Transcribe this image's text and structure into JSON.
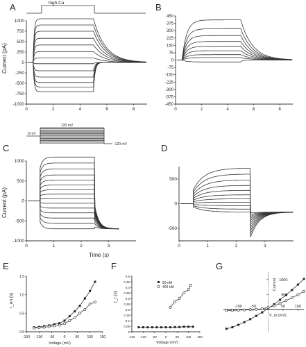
{
  "panel_labels": {
    "A": "A",
    "B": "B",
    "C": "C",
    "D": "D",
    "E": "E",
    "F": "F",
    "G": "G"
  },
  "protocol_A": {
    "label": "high Ca"
  },
  "protocol_C": {
    "top": "120 mV",
    "left": "0 mV",
    "bottom": "-120 mV"
  },
  "top_row": {
    "ylabel": "Current (pA)",
    "A": {
      "yticks": [
        "1000",
        "750",
        "500",
        "250",
        "0",
        "-250",
        "-500",
        "-750",
        "-1000"
      ],
      "xticks": [
        "0",
        "2",
        "4",
        "6",
        "8"
      ]
    },
    "B": {
      "yticks": [
        "450",
        "375",
        "300",
        "225",
        "150",
        "75",
        "0",
        "-75",
        "-150",
        "-225",
        "-300",
        "-375",
        "-450"
      ],
      "xticks": [
        "0",
        "2",
        "4",
        "6",
        "8"
      ]
    }
  },
  "mid_row": {
    "ylabel": "Current (pA)",
    "xlabel": "Time (s)",
    "C": {
      "yticks": [
        "1000",
        "500",
        "0",
        "-500",
        "-1000"
      ],
      "xticks": [
        "0",
        "1",
        "2",
        "3"
      ]
    },
    "D": {
      "yticks": [
        "500",
        "0",
        "-500"
      ],
      "xticks": [
        "0",
        "1",
        "2",
        "3"
      ]
    }
  },
  "E": {
    "ylabel": "τ_on (s)",
    "xlabel": "Voltage (mV)",
    "yticks": [
      "1.5",
      "1.0",
      "0.5",
      "0.0"
    ],
    "xticks": [
      "-150",
      "-100",
      "-50",
      "0",
      "50",
      "100",
      "150"
    ]
  },
  "F": {
    "ylabel": "τ_r (s)",
    "xlabel": "Voltage (mV)",
    "yticks": [
      "0.5",
      "0.45",
      "0.4",
      "0.35",
      "0.3",
      "0.25",
      "0.2",
      "0.15",
      "0.1",
      "0.05",
      "0"
    ],
    "xticks": [
      "-150",
      "-100",
      "-50",
      "0",
      "50",
      "100",
      "150"
    ],
    "legend": [
      "50 nM",
      "400 nM"
    ]
  },
  "G": {
    "ylabel": "Current",
    "xlabel": "V_m (mV)",
    "yticks": [
      "1000",
      "500"
    ],
    "xticks": [
      "-100",
      "-50",
      "50",
      "100"
    ]
  },
  "chart_data": [
    {
      "panel": "A",
      "type": "line",
      "ylabel": "Current (pA)",
      "xlim": [
        0,
        9
      ],
      "ylim": [
        -1000,
        1000
      ],
      "step_levels": [
        1050,
        900,
        750,
        580,
        420,
        260,
        110,
        -30,
        -200,
        -350,
        -480,
        -590,
        -700
      ]
    },
    {
      "panel": "B",
      "type": "line",
      "xlim": [
        0,
        9
      ],
      "ylim": [
        -450,
        450
      ],
      "step_levels": [
        410,
        320,
        250,
        190,
        140,
        95,
        55,
        25,
        -20
      ]
    },
    {
      "panel": "C",
      "type": "line",
      "ylabel": "Current (pA)",
      "xlabel": "Time (s)",
      "xlim": [
        0,
        4
      ],
      "ylim": [
        -1000,
        1000
      ],
      "step_levels": [
        1100,
        950,
        800,
        650,
        520,
        400,
        280,
        170,
        60,
        -60,
        -180,
        -300,
        -430,
        -560,
        -700
      ],
      "tail_level": -700
    },
    {
      "panel": "D",
      "type": "line",
      "xlabel": "Time (s)",
      "xlim": [
        0,
        4
      ],
      "ylim": [
        -750,
        750
      ],
      "step_levels": [
        720,
        600,
        480,
        370,
        270,
        180,
        100,
        30,
        -40,
        -110,
        -170
      ],
      "tail_level": -170
    },
    {
      "panel": "E",
      "type": "scatter",
      "xlabel": "Voltage (mV)",
      "ylabel": "τ_on (s)",
      "xlim": [
        -150,
        150
      ],
      "ylim": [
        0,
        1.5
      ],
      "series": [
        {
          "marker": "filled",
          "x": [
            -120,
            -100,
            -80,
            -60,
            -40,
            -20,
            0,
            20,
            40,
            60,
            80,
            100,
            120
          ],
          "y": [
            0.12,
            0.13,
            0.15,
            0.17,
            0.2,
            0.23,
            0.3,
            0.42,
            0.55,
            0.7,
            0.9,
            1.1,
            1.35
          ]
        },
        {
          "marker": "open",
          "x": [
            -120,
            -100,
            -80,
            -60,
            -40,
            -20,
            0,
            20,
            40,
            60,
            80,
            100,
            120
          ],
          "y": [
            0.1,
            0.11,
            0.12,
            0.14,
            0.16,
            0.18,
            0.22,
            0.3,
            0.38,
            0.5,
            0.6,
            0.75,
            0.8
          ]
        }
      ]
    },
    {
      "panel": "F",
      "type": "scatter",
      "xlabel": "Voltage (mV)",
      "ylabel": "τ_r (s)",
      "xlim": [
        -150,
        150
      ],
      "ylim": [
        0,
        0.5
      ],
      "series": [
        {
          "name": "50 nM",
          "marker": "filled",
          "x": [
            -120,
            -100,
            -80,
            -60,
            -40,
            -20,
            0,
            20,
            40,
            60,
            80,
            100,
            120
          ],
          "y": [
            0.04,
            0.04,
            0.04,
            0.04,
            0.04,
            0.04,
            0.04,
            0.04,
            0.042,
            0.042,
            0.045,
            0.045,
            0.045
          ]
        },
        {
          "name": "400 nM",
          "marker": "open",
          "x": [
            20,
            40,
            60,
            80,
            100,
            110
          ],
          "y": [
            0.22,
            0.27,
            0.3,
            0.35,
            0.38,
            0.42
          ]
        }
      ]
    },
    {
      "panel": "G",
      "type": "line",
      "xlabel": "V_m (mV)",
      "ylabel": "Current",
      "xlim": [
        -150,
        120
      ],
      "ylim": [
        -750,
        1250
      ],
      "series": [
        {
          "marker": "filled",
          "x": [
            -140,
            -120,
            -100,
            -80,
            -60,
            -40,
            -20,
            0,
            20,
            40,
            60,
            80,
            100,
            120
          ],
          "y": [
            -650,
            -600,
            -520,
            -430,
            -330,
            -220,
            -100,
            30,
            170,
            320,
            480,
            650,
            830,
            1020
          ]
        },
        {
          "marker": "open",
          "x": [
            -140,
            -120,
            -100,
            -80,
            -60,
            -40,
            -20,
            0,
            20,
            40,
            60,
            80,
            100,
            120
          ],
          "y": [
            -40,
            -35,
            -30,
            -20,
            -10,
            0,
            20,
            60,
            120,
            200,
            290,
            390,
            490,
            600
          ]
        }
      ]
    }
  ]
}
